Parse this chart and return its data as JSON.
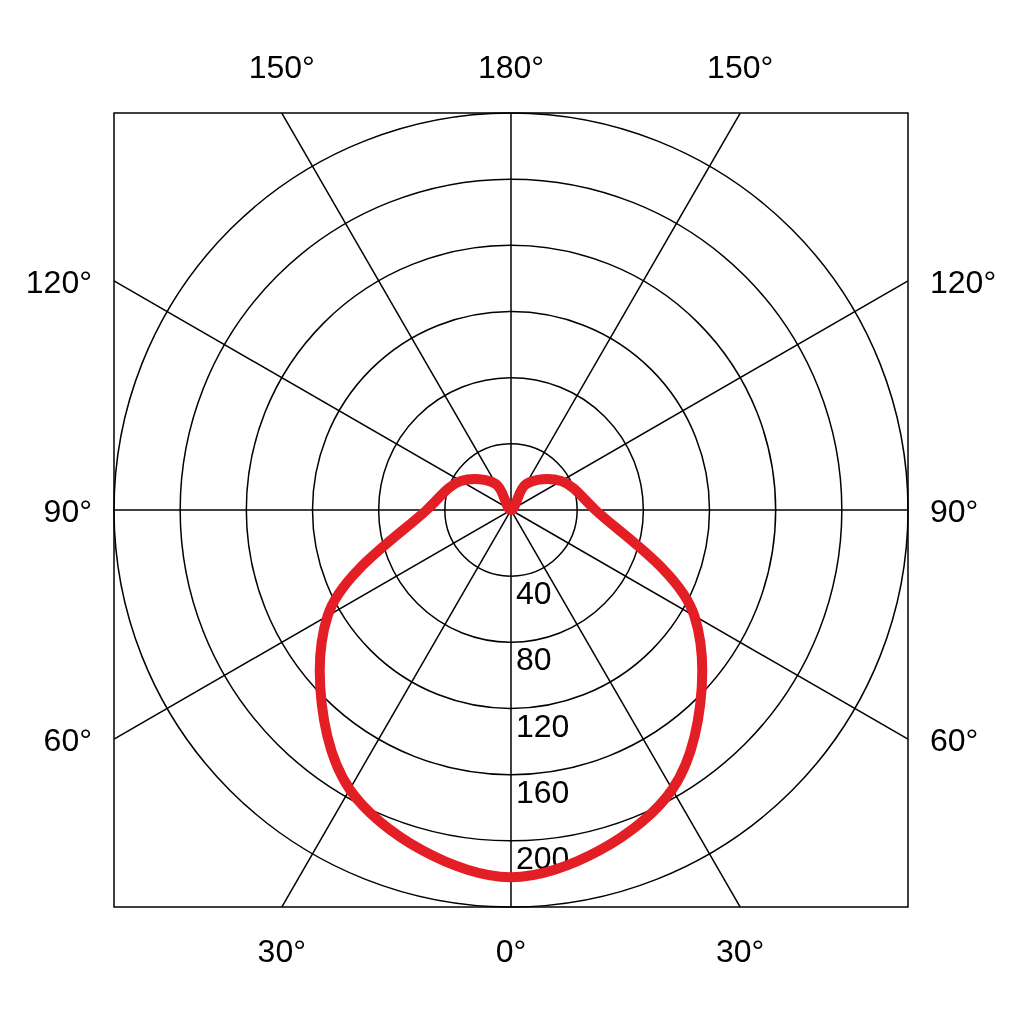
{
  "chart_data": {
    "type": "radar",
    "categories": [
      "180°",
      "150°",
      "120°",
      "90°",
      "60°",
      "30°",
      "0°",
      "30°",
      "60°",
      "90°",
      "120°",
      "150°"
    ],
    "ylim": [
      0,
      240
    ],
    "yticks": [
      40,
      80,
      120,
      160,
      200
    ],
    "grid": true,
    "marker": "none",
    "line_style": "solid",
    "series": [
      {
        "color": "#e31e24",
        "values": [
          0,
          18,
          35,
          51,
          128,
          195,
          222,
          195,
          128,
          51,
          35,
          18
        ]
      }
    ]
  }
}
